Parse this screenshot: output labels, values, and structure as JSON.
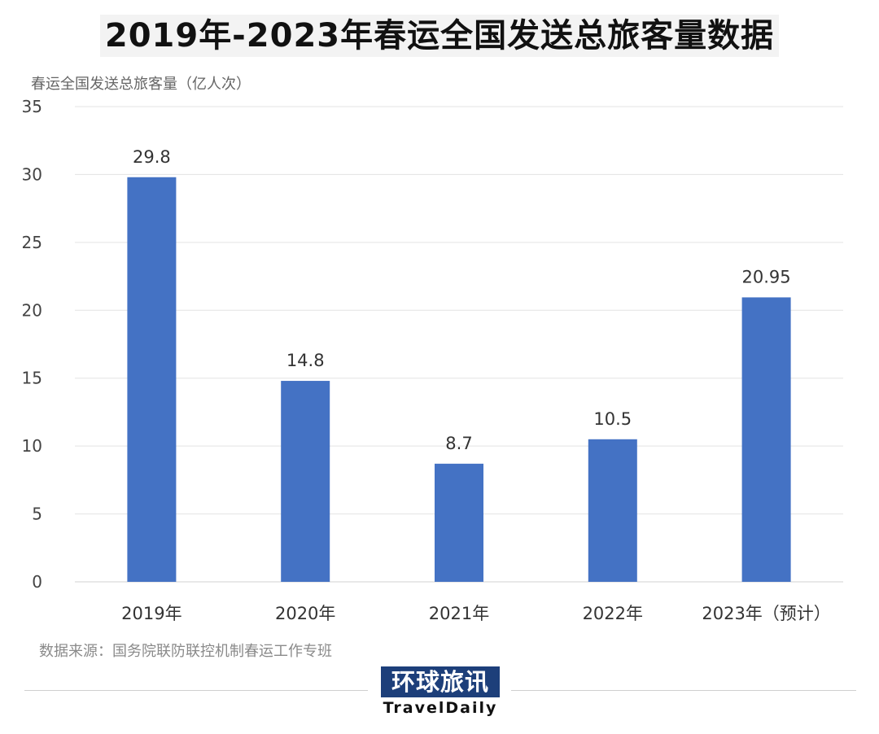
{
  "title": "2019年-2023年春运全国发送总旅客量数据",
  "source": "数据来源：国务院联防联控机制春运工作专班",
  "logo": {
    "cn": "环球旅讯",
    "en": "TravelDaily"
  },
  "chart_data": {
    "type": "bar",
    "title": "2019年-2023年春运全国发送总旅客量数据",
    "ylabel": "春运全国发送总旅客量（亿人次）",
    "xlabel": "",
    "categories": [
      "2019年",
      "2020年",
      "2021年",
      "2022年",
      "2023年（预计）"
    ],
    "values": [
      29.8,
      14.8,
      8.7,
      10.5,
      20.95
    ],
    "data_labels": [
      "29.8",
      "14.8",
      "8.7",
      "10.5",
      "20.95"
    ],
    "ylim": [
      0,
      35
    ],
    "yticks": [
      0,
      5,
      10,
      15,
      20,
      25,
      30,
      35
    ],
    "grid": true,
    "bar_color": "#4472c4",
    "legend": "none"
  }
}
